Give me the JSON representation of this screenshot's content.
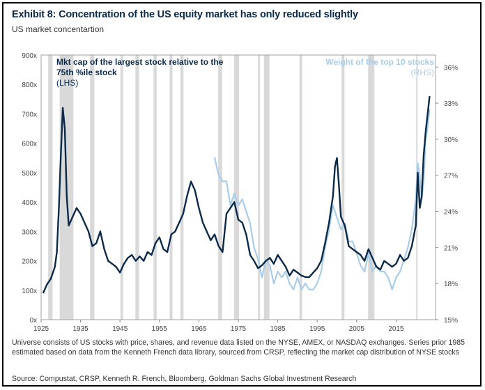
{
  "title": "Exhibit 8: Concentration of the US equity market has only reduced slightly",
  "subtitle": "US market concentartion",
  "footnote": "Universe consists of US stocks with price, shares, and revenue data listed on the NYSE, AMEX, or NASDAQ exchanges. Series prior 1985 estimated based on data from the Kenneth French data library, sourced from CRSP, reflecting the market cap distribution of NYSE stocks",
  "source": "Source: Compustat, CRSP, Kenneth R. French, Bloomberg, Goldman Sachs Global Investment Research",
  "colors": {
    "lhs": "#0b2a4a",
    "rhs": "#a9cde9",
    "recession": "#d9d9d9",
    "axis": "#888888"
  },
  "chart_data": {
    "type": "line",
    "legend": [
      {
        "text": "Mkt cap of the largest stock relative to the",
        "line2": "75th %ile stock",
        "line3": "(LHS)"
      },
      {
        "text": "Weight of the top 10 stocks",
        "line2": "(RHS)"
      }
    ],
    "xticks": [
      "1925",
      "1935",
      "1945",
      "1955",
      "1965",
      "1975",
      "1985",
      "1995",
      "2005",
      "2015"
    ],
    "xlim": [
      1925,
      2025
    ],
    "y_left": {
      "ylim": [
        0,
        900
      ],
      "ticks": [
        "0x",
        "100x",
        "200x",
        "300x",
        "400x",
        "500x",
        "600x",
        "700x",
        "800x",
        "900x"
      ]
    },
    "y_right": {
      "ylim": [
        15,
        37
      ],
      "ticks": [
        "15%",
        "18%",
        "21%",
        "24%",
        "27%",
        "30%",
        "33%",
        "36%"
      ]
    },
    "recessions": [
      [
        1926.8,
        1927.9
      ],
      [
        1929.7,
        1933.2
      ],
      [
        1937.4,
        1938.5
      ],
      [
        1945.1,
        1945.8
      ],
      [
        1948.9,
        1949.8
      ],
      [
        1953.5,
        1954.3
      ],
      [
        1957.6,
        1958.3
      ],
      [
        1960.3,
        1961.1
      ],
      [
        1969.9,
        1970.9
      ],
      [
        1973.9,
        1975.2
      ],
      [
        1980.0,
        1980.5
      ],
      [
        1981.5,
        1982.9
      ],
      [
        1990.5,
        1991.2
      ],
      [
        2001.2,
        2001.9
      ],
      [
        2007.9,
        2009.5
      ],
      [
        2020.1,
        2020.4
      ]
    ],
    "series": [
      {
        "name": "Mkt cap of the largest stock relative to the 75th %ile stock",
        "axis": "left",
        "x": [
          1925.5,
          1926.5,
          1927.5,
          1928.5,
          1929.0,
          1929.5,
          1930.0,
          1930.5,
          1931.0,
          1931.5,
          1932.0,
          1933.0,
          1934.0,
          1935.0,
          1936.0,
          1937.0,
          1938.0,
          1939.0,
          1940.0,
          1941.0,
          1942.0,
          1943.0,
          1944.0,
          1945.0,
          1946.0,
          1947.0,
          1948.0,
          1949.0,
          1950.0,
          1951.0,
          1952.0,
          1953.0,
          1954.0,
          1955.0,
          1956.0,
          1957.0,
          1958.0,
          1959.0,
          1960.0,
          1961.0,
          1962.0,
          1963.0,
          1964.0,
          1965.0,
          1966.0,
          1967.0,
          1968.0,
          1969.0,
          1970.0,
          1971.0,
          1972.0,
          1973.0,
          1974.0,
          1975.0,
          1976.0,
          1977.0,
          1978.0,
          1979.0,
          1980.0,
          1981.0,
          1982.0,
          1983.0,
          1984.0,
          1985.0,
          1986.0,
          1987.0,
          1988.0,
          1989.0,
          1990.0,
          1991.0,
          1992.0,
          1993.0,
          1994.0,
          1995.0,
          1996.0,
          1997.0,
          1998.0,
          1999.0,
          1999.5,
          2000.0,
          2000.5,
          2001.0,
          2002.0,
          2003.0,
          2004.0,
          2005.0,
          2006.0,
          2007.0,
          2008.0,
          2009.0,
          2010.0,
          2011.0,
          2012.0,
          2013.0,
          2014.0,
          2015.0,
          2016.0,
          2017.0,
          2018.0,
          2019.0,
          2020.0,
          2020.5,
          2021.0,
          2021.5,
          2022.0,
          2022.5,
          2023.0,
          2023.5
        ],
        "values": [
          90,
          120,
          140,
          180,
          230,
          380,
          560,
          720,
          650,
          420,
          320,
          350,
          380,
          360,
          330,
          300,
          250,
          260,
          300,
          240,
          200,
          190,
          180,
          160,
          190,
          210,
          220,
          200,
          215,
          200,
          230,
          220,
          260,
          280,
          240,
          230,
          290,
          300,
          330,
          360,
          420,
          470,
          440,
          380,
          330,
          300,
          270,
          290,
          250,
          230,
          360,
          380,
          400,
          340,
          330,
          290,
          220,
          200,
          175,
          185,
          200,
          210,
          190,
          220,
          200,
          180,
          150,
          170,
          160,
          150,
          145,
          145,
          160,
          175,
          200,
          260,
          330,
          420,
          520,
          550,
          460,
          350,
          320,
          250,
          240,
          230,
          220,
          200,
          240,
          210,
          180,
          170,
          200,
          190,
          180,
          190,
          220,
          200,
          210,
          250,
          320,
          500,
          380,
          420,
          560,
          640,
          700,
          760
        ]
      },
      {
        "name": "Weight of the top 10 stocks",
        "axis": "right",
        "x": [
          1969.0,
          1970.0,
          1971.0,
          1972.0,
          1973.0,
          1974.0,
          1975.0,
          1976.0,
          1977.0,
          1978.0,
          1979.0,
          1980.0,
          1981.0,
          1982.0,
          1983.0,
          1984.0,
          1985.0,
          1986.0,
          1987.0,
          1988.0,
          1989.0,
          1990.0,
          1991.0,
          1992.0,
          1993.0,
          1994.0,
          1995.0,
          1996.0,
          1997.0,
          1998.0,
          1999.0,
          2000.0,
          2001.0,
          2002.0,
          2003.0,
          2004.0,
          2005.0,
          2006.0,
          2007.0,
          2008.0,
          2009.0,
          2010.0,
          2011.0,
          2012.0,
          2013.0,
          2014.0,
          2015.0,
          2016.0,
          2017.0,
          2018.0,
          2019.0,
          2020.0,
          2020.5,
          2021.0,
          2021.5,
          2022.0,
          2022.5,
          2023.0,
          2023.5
        ],
        "values": [
          28.5,
          27.0,
          26.5,
          26.5,
          24.5,
          25.5,
          24.5,
          25.0,
          24.0,
          23.0,
          21.0,
          20.0,
          18.5,
          20.0,
          19.5,
          18.0,
          19.0,
          18.5,
          19.0,
          18.0,
          17.5,
          18.5,
          17.5,
          18.0,
          17.5,
          17.5,
          18.0,
          19.0,
          21.0,
          22.5,
          24.5,
          23.5,
          22.5,
          23.0,
          21.5,
          21.5,
          20.5,
          19.5,
          19.0,
          20.5,
          19.0,
          19.5,
          19.0,
          19.0,
          18.5,
          17.5,
          18.5,
          19.0,
          20.0,
          21.0,
          22.5,
          25.0,
          28.0,
          27.0,
          25.0,
          26.5,
          30.0,
          31.0,
          32.5
        ]
      }
    ]
  }
}
